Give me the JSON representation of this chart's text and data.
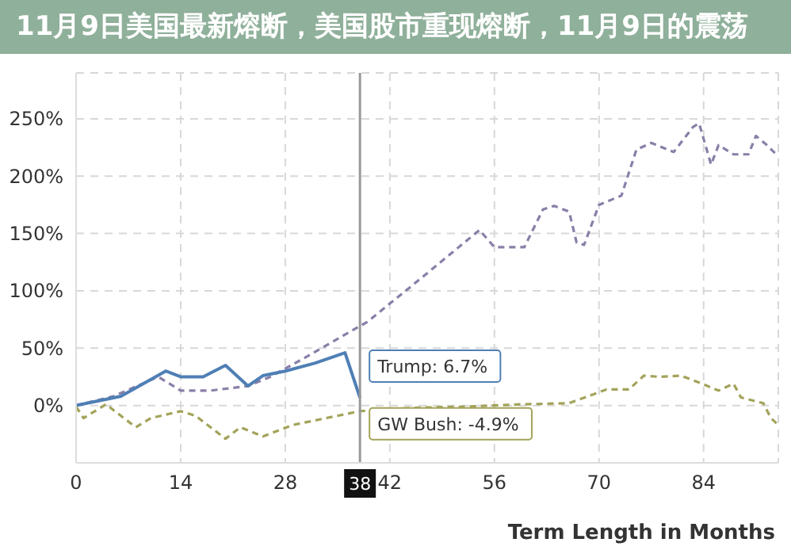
{
  "chart_data": {
    "type": "line",
    "title": "11月9日美国最新熔断，美国股市重现熔断，11月9日的震荡",
    "xlabel": "Term Length in Months",
    "xlim": [
      0,
      94
    ],
    "xticks": [
      0,
      14,
      28,
      42,
      56,
      70,
      84
    ],
    "ylim": [
      -50,
      290
    ],
    "yticks": [
      {
        "value": 0,
        "label": "0%"
      },
      {
        "value": 50,
        "label": "50%"
      },
      {
        "value": 100,
        "label": "100%"
      },
      {
        "value": 150,
        "label": "150%"
      },
      {
        "value": 200,
        "label": "200%"
      },
      {
        "value": 250,
        "label": "250%"
      }
    ],
    "grid": true,
    "marker": "none",
    "series": [
      {
        "color": "#8a7fa8",
        "line_style": "dashed",
        "x": [
          0,
          5,
          11,
          14,
          18,
          23,
          26,
          31,
          35,
          39,
          46,
          54,
          56,
          60,
          62.5,
          64,
          66,
          67,
          68,
          70,
          73,
          75,
          77,
          80,
          82.6,
          83.4,
          85,
          86,
          88,
          90,
          91,
          92.5,
          94
        ],
        "values": [
          0,
          8,
          25,
          13,
          13,
          17,
          25,
          43,
          58,
          73,
          110,
          153,
          138,
          138,
          171,
          174,
          169,
          142,
          140,
          175,
          183,
          223,
          229,
          221,
          243,
          246,
          210,
          227,
          219,
          219,
          235,
          227,
          217
        ]
      },
      {
        "color": "#a3a35a",
        "line_style": "dashed",
        "x": [
          0,
          1,
          4,
          8,
          10,
          14,
          16,
          20,
          22,
          25,
          29,
          32,
          38,
          45,
          52,
          59.5,
          66,
          71,
          74,
          76,
          78,
          81,
          83.4,
          86,
          88,
          89,
          92,
          93,
          94
        ],
        "values": [
          -1,
          -11,
          1,
          -19,
          -11,
          -5,
          -9,
          -29,
          -19,
          -27,
          -17,
          -13,
          -4.9,
          -2,
          -1,
          1,
          2,
          14,
          14,
          26,
          25,
          26,
          20,
          13,
          19,
          7,
          2,
          -11,
          -17
        ]
      },
      {
        "color": "#4f7fb5",
        "line_style": "solid",
        "x": [
          0,
          6,
          12,
          14,
          17,
          20,
          23,
          25,
          28,
          32,
          36,
          38
        ],
        "values": [
          0,
          8,
          30,
          25,
          25,
          35,
          17,
          26,
          30,
          37,
          46,
          6.7
        ]
      }
    ],
    "ref_lines": [
      {
        "axis": "x",
        "value": 38,
        "label": "38",
        "color": "#999999",
        "line_style": "solid"
      }
    ],
    "annotations": [
      {
        "text": "Trump: 6.7%",
        "x": 38,
        "y": 6.7
      },
      {
        "text": "GW Bush: -4.9%",
        "x": 38,
        "y": -4.9
      }
    ]
  }
}
